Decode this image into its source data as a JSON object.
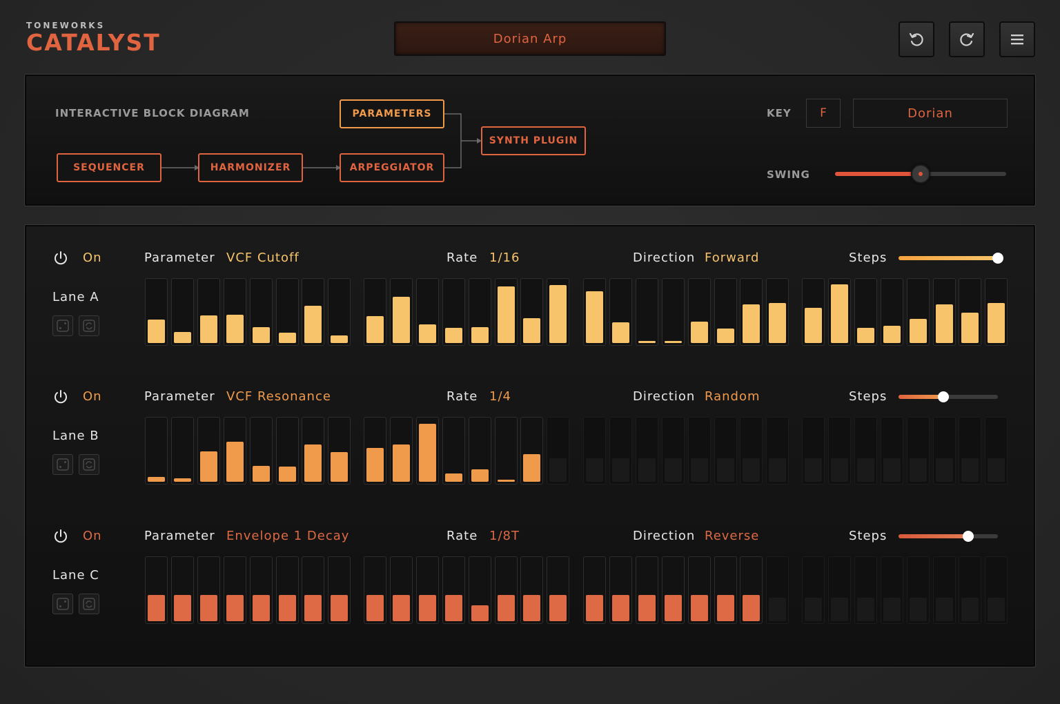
{
  "brand": {
    "sub": "TONEWORKS",
    "main": "CATALYST"
  },
  "preset": {
    "name": "Dorian Arp"
  },
  "header_buttons": [
    {
      "name": "undo-button",
      "icon": "undo-icon"
    },
    {
      "name": "redo-button",
      "icon": "redo-icon"
    },
    {
      "name": "menu-button",
      "icon": "menu-icon"
    }
  ],
  "diagram": {
    "label": "INTERACTIVE BLOCK DIAGRAM",
    "blocks": {
      "sequencer": "SEQUENCER",
      "harmonizer": "HARMONIZER",
      "arpeggiator": "ARPEGGIATOR",
      "parameters": "PARAMETERS",
      "synth": "SYNTH PLUGIN"
    }
  },
  "key": {
    "label": "KEY",
    "value": "F",
    "mode": "Dorian"
  },
  "swing": {
    "label": "SWING",
    "value": 0.5
  },
  "colors": {
    "accent": "#e0643f",
    "laneA": "#f7c46c",
    "laneB": "#f09a4c",
    "laneC": "#dd6a45"
  },
  "lanes": [
    {
      "on_label": "On",
      "name": "Lane A",
      "parameter_label": "Parameter",
      "parameter": "VCF Cutoff",
      "rate_label": "Rate",
      "rate": "1/16",
      "direction_label": "Direction",
      "direction": "Forward",
      "steps_label": "Steps",
      "steps_value": 1.0,
      "active_steps": 32,
      "values": [
        0.38,
        0.18,
        0.44,
        0.46,
        0.26,
        0.17,
        0.6,
        0.12,
        0.43,
        0.75,
        0.3,
        0.24,
        0.26,
        0.91,
        0.4,
        0.93,
        0.83,
        0.33,
        0.03,
        0.03,
        0.35,
        0.23,
        0.62,
        0.64,
        0.57,
        0.94,
        0.25,
        0.28,
        0.39,
        0.62,
        0.49,
        0.64
      ]
    },
    {
      "on_label": "On",
      "name": "Lane B",
      "parameter_label": "Parameter",
      "parameter": "VCF Resonance",
      "rate_label": "Rate",
      "rate": "1/4",
      "direction_label": "Direction",
      "direction": "Random",
      "steps_label": "Steps",
      "steps_value": 0.45,
      "active_steps": 15,
      "values": [
        0.08,
        0.06,
        0.49,
        0.65,
        0.26,
        0.25,
        0.6,
        0.48,
        0.55,
        0.6,
        0.93,
        0.13,
        0.2,
        0.03,
        0.45
      ]
    },
    {
      "on_label": "On",
      "name": "Lane C",
      "parameter_label": "Parameter",
      "parameter": "Envelope 1 Decay",
      "rate_label": "Rate",
      "rate": "1/8T",
      "direction_label": "Direction",
      "direction": "Reverse",
      "steps_label": "Steps",
      "steps_value": 0.7,
      "active_steps": 23,
      "values": [
        0.42,
        0.42,
        0.42,
        0.42,
        0.42,
        0.42,
        0.42,
        0.42,
        0.42,
        0.42,
        0.42,
        0.42,
        0.26,
        0.42,
        0.42,
        0.42,
        0.42,
        0.42,
        0.42,
        0.42,
        0.42,
        0.42,
        0.42
      ]
    }
  ]
}
